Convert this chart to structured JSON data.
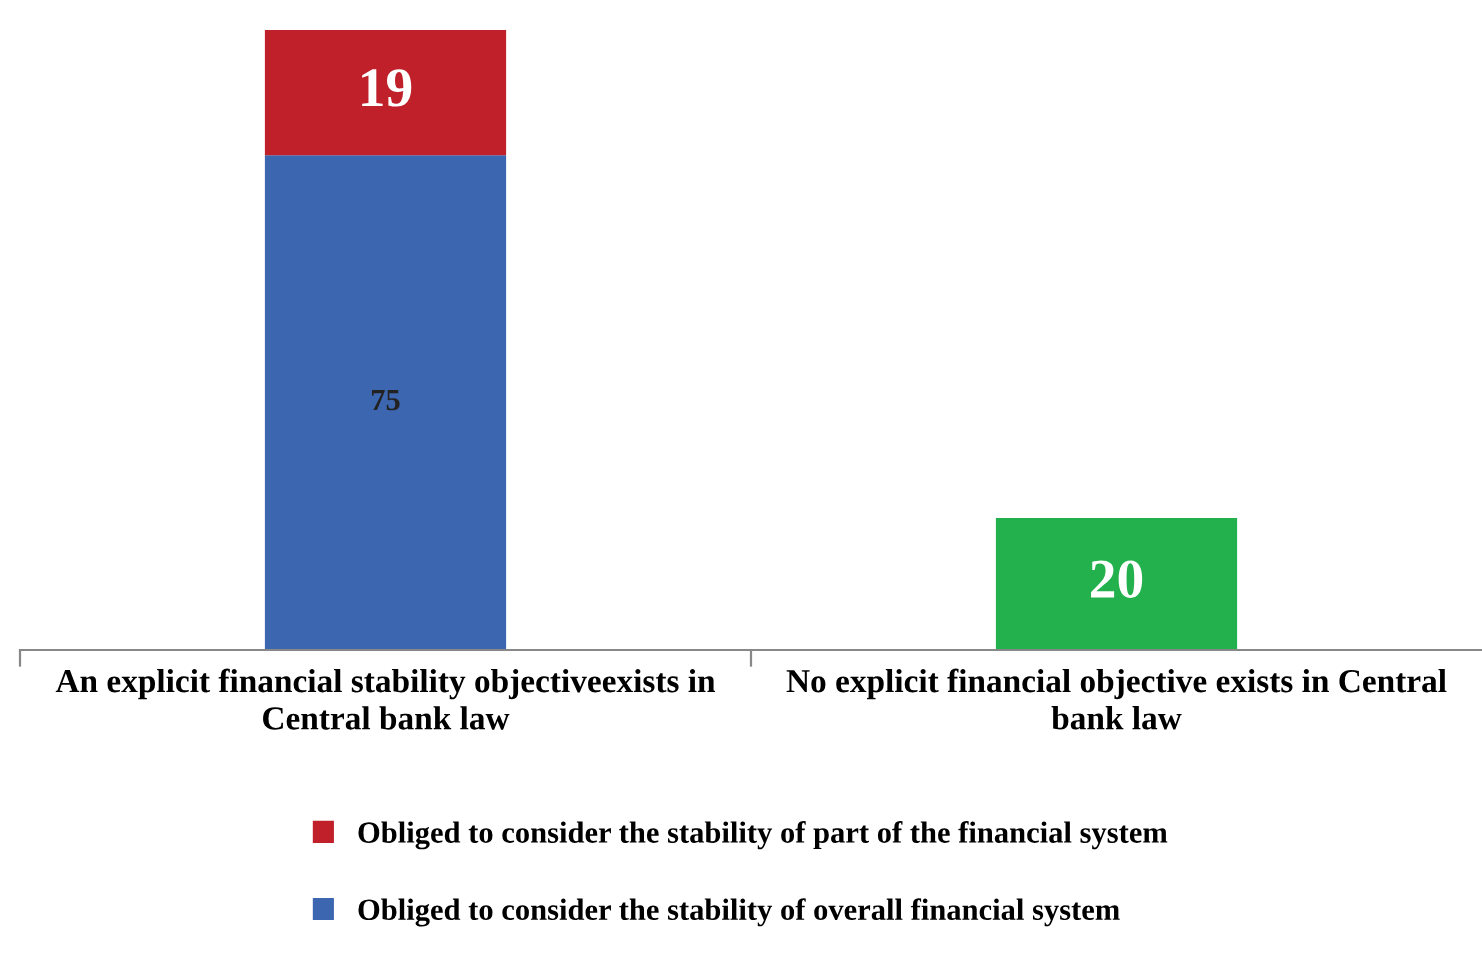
{
  "chart_data": {
    "type": "bar",
    "stacked": true,
    "data_labels": true,
    "legend": "bottom",
    "grid": false,
    "categories": [
      "An explicit financial stability objectiveexists in Central bank law",
      "No explicit financial objective exists in Central bank law"
    ],
    "series": [
      {
        "name": "Obliged to consider the stability of overall financial system",
        "color": "#3d66b0",
        "values": [
          75,
          null
        ]
      },
      {
        "name": "Obliged to consider the stability of part of the financial system",
        "color": "#c0202a",
        "values": [
          19,
          null
        ]
      },
      {
        "color": "#22b14c",
        "values": [
          null,
          20
        ]
      }
    ]
  }
}
